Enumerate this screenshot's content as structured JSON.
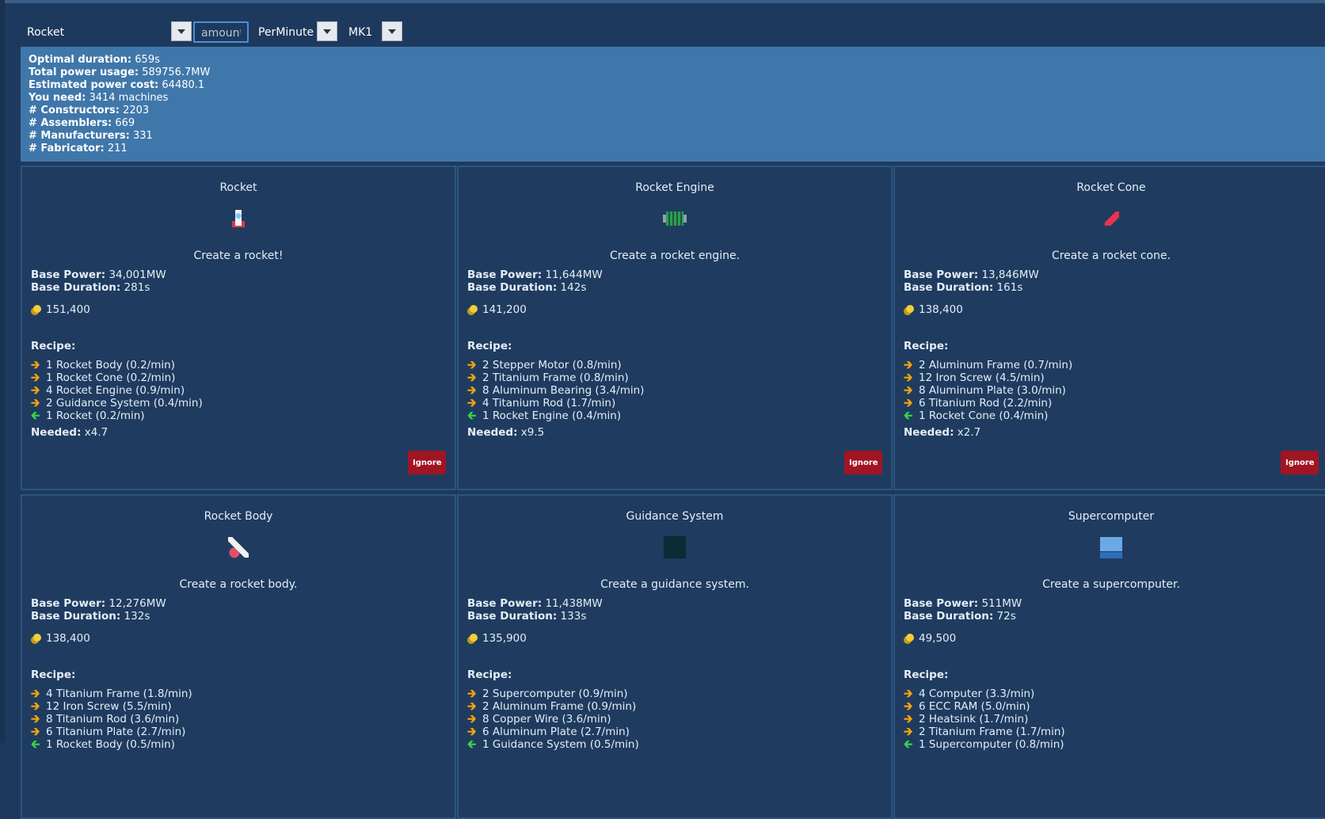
{
  "toolbar": {
    "item_select": "Rocket",
    "amount_placeholder": "amount",
    "rate_select": "PerMinute",
    "tier_select": "MK1"
  },
  "summary": [
    {
      "label": "Optimal duration:",
      "value": "659s"
    },
    {
      "label": "Total power usage:",
      "value": "589756.7MW"
    },
    {
      "label": "Estimated power cost:",
      "value": "64480.1"
    },
    {
      "label": "You need:",
      "value": "3414 machines"
    },
    {
      "label": "# Constructors:",
      "value": "2203"
    },
    {
      "label": "# Assemblers:",
      "value": "669"
    },
    {
      "label": "# Manufacturers:",
      "value": "331"
    },
    {
      "label": "# Fabricator:",
      "value": "211"
    }
  ],
  "labels": {
    "base_power": "Base Power:",
    "base_duration": "Base Duration:",
    "recipe": "Recipe:",
    "needed": "Needed:",
    "ignore": "Ignore"
  },
  "cards": [
    {
      "title": "Rocket",
      "icon": "rocket-icon",
      "description": "Create a rocket!",
      "base_power": "34,001MW",
      "base_duration": "281s",
      "cost": "151,400",
      "recipe": [
        {
          "dir": "in",
          "text": "1 Rocket Body (0.2/min)"
        },
        {
          "dir": "in",
          "text": "1 Rocket Cone (0.2/min)"
        },
        {
          "dir": "in",
          "text": "4 Rocket Engine (0.9/min)"
        },
        {
          "dir": "in",
          "text": "2 Guidance System (0.4/min)"
        },
        {
          "dir": "out",
          "text": "1 Rocket (0.2/min)"
        }
      ],
      "needed": "x4.7"
    },
    {
      "title": "Rocket Engine",
      "icon": "rocket-engine-icon",
      "description": "Create a rocket engine.",
      "base_power": "11,644MW",
      "base_duration": "142s",
      "cost": "141,200",
      "recipe": [
        {
          "dir": "in",
          "text": "2 Stepper Motor (0.8/min)"
        },
        {
          "dir": "in",
          "text": "2 Titanium Frame (0.8/min)"
        },
        {
          "dir": "in",
          "text": "8 Aluminum Bearing (3.4/min)"
        },
        {
          "dir": "in",
          "text": "4 Titanium Rod (1.7/min)"
        },
        {
          "dir": "out",
          "text": "1 Rocket Engine (0.4/min)"
        }
      ],
      "needed": "x9.5"
    },
    {
      "title": "Rocket Cone",
      "icon": "rocket-cone-icon",
      "description": "Create a rocket cone.",
      "base_power": "13,846MW",
      "base_duration": "161s",
      "cost": "138,400",
      "recipe": [
        {
          "dir": "in",
          "text": "2 Aluminum Frame (0.7/min)"
        },
        {
          "dir": "in",
          "text": "12 Iron Screw (4.5/min)"
        },
        {
          "dir": "in",
          "text": "8 Aluminum Plate (3.0/min)"
        },
        {
          "dir": "in",
          "text": "6 Titanium Rod (2.2/min)"
        },
        {
          "dir": "out",
          "text": "1 Rocket Cone (0.4/min)"
        }
      ],
      "needed": "x2.7"
    },
    {
      "title": "Rocket Body",
      "icon": "rocket-body-icon",
      "description": "Create a rocket body.",
      "base_power": "12,276MW",
      "base_duration": "132s",
      "cost": "138,400",
      "recipe": [
        {
          "dir": "in",
          "text": "4 Titanium Frame (1.8/min)"
        },
        {
          "dir": "in",
          "text": "12 Iron Screw (5.5/min)"
        },
        {
          "dir": "in",
          "text": "8 Titanium Rod (3.6/min)"
        },
        {
          "dir": "in",
          "text": "6 Titanium Plate (2.7/min)"
        },
        {
          "dir": "out",
          "text": "1 Rocket Body (0.5/min)"
        }
      ],
      "needed": ""
    },
    {
      "title": "Guidance System",
      "icon": "guidance-system-icon",
      "description": "Create a guidance system.",
      "base_power": "11,438MW",
      "base_duration": "133s",
      "cost": "135,900",
      "recipe": [
        {
          "dir": "in",
          "text": "2 Supercomputer (0.9/min)"
        },
        {
          "dir": "in",
          "text": "2 Aluminum Frame (0.9/min)"
        },
        {
          "dir": "in",
          "text": "8 Copper Wire (3.6/min)"
        },
        {
          "dir": "in",
          "text": "6 Aluminum Plate (2.7/min)"
        },
        {
          "dir": "out",
          "text": "1 Guidance System (0.5/min)"
        }
      ],
      "needed": ""
    },
    {
      "title": "Supercomputer",
      "icon": "supercomputer-icon",
      "description": "Create a supercomputer.",
      "base_power": "511MW",
      "base_duration": "72s",
      "cost": "49,500",
      "recipe": [
        {
          "dir": "in",
          "text": "4 Computer (3.3/min)"
        },
        {
          "dir": "in",
          "text": "6 ECC RAM (5.0/min)"
        },
        {
          "dir": "in",
          "text": "2 Heatsink (1.7/min)"
        },
        {
          "dir": "in",
          "text": "2 Titanium Frame (1.7/min)"
        },
        {
          "dir": "out",
          "text": "1 Supercomputer (0.8/min)"
        }
      ],
      "needed": ""
    }
  ]
}
